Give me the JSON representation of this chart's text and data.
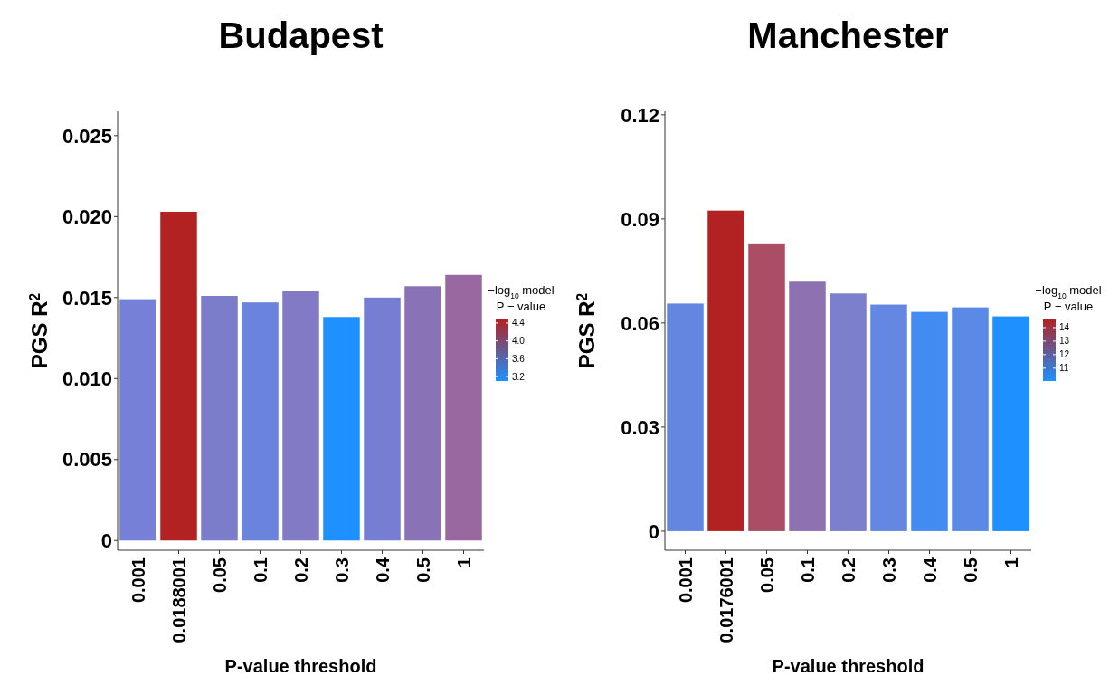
{
  "chart_data": [
    {
      "type": "bar",
      "title": "Budapest",
      "xlabel": "P-value threshold",
      "ylabel": "PGS R$^{2}$",
      "clabel": "−log$_{10}$ model\nP − value",
      "categories": [
        "0.001",
        "0.0188001",
        "0.05",
        "0.1",
        "0.2",
        "0.3",
        "0.4",
        "0.5",
        "1"
      ],
      "values": [
        0.0149,
        0.0203,
        0.0151,
        0.0147,
        0.0154,
        0.0138,
        0.015,
        0.0157,
        0.0164
      ],
      "colors": [
        "#7580d6",
        "#b22222",
        "#7b7cca",
        "#6a83dd",
        "#837ac5",
        "#1e90ff",
        "#767ed3",
        "#8a72b7",
        "#9868a0"
      ],
      "ylim": [
        -0.0006,
        0.0265
      ],
      "yticks": [
        0,
        0.005,
        {
          "value": 0.01,
          "label": "0.010"
        },
        0.015,
        {
          "value": 0.02,
          "label": "0.020"
        },
        0.025
      ],
      "clim": [
        3.1,
        4.48
      ],
      "cticks": [
        3.2,
        3.6,
        {
          "value": 4,
          "label": "4.0"
        },
        4.4
      ],
      "grid": false
    },
    {
      "type": "bar",
      "title": "Manchester",
      "xlabel": "P-value threshold",
      "ylabel": "PGS R$^{2}$",
      "clabel": "−log$_{10}$ model\nP − value",
      "categories": [
        "0.001",
        "0.0176001",
        "0.05",
        "0.1",
        "0.2",
        "0.3",
        "0.4",
        "0.5",
        "1"
      ],
      "values": [
        0.0656,
        0.0924,
        0.0827,
        0.0719,
        0.0685,
        0.0653,
        0.0632,
        0.0645,
        0.0619
      ],
      "colors": [
        "#6486e0",
        "#b22222",
        "#ab4d64",
        "#8e71b1",
        "#7c7fcc",
        "#6488e1",
        "#428cf1",
        "#5b89e6",
        "#1e90ff"
      ],
      "ylim": [
        -0.0055,
        0.121
      ],
      "yticks": [
        0,
        0.03,
        0.06,
        0.09,
        0.12
      ],
      "clim": [
        10.05,
        14.6
      ],
      "cticks": [
        11,
        12,
        13,
        14
      ],
      "grid": false
    }
  ]
}
